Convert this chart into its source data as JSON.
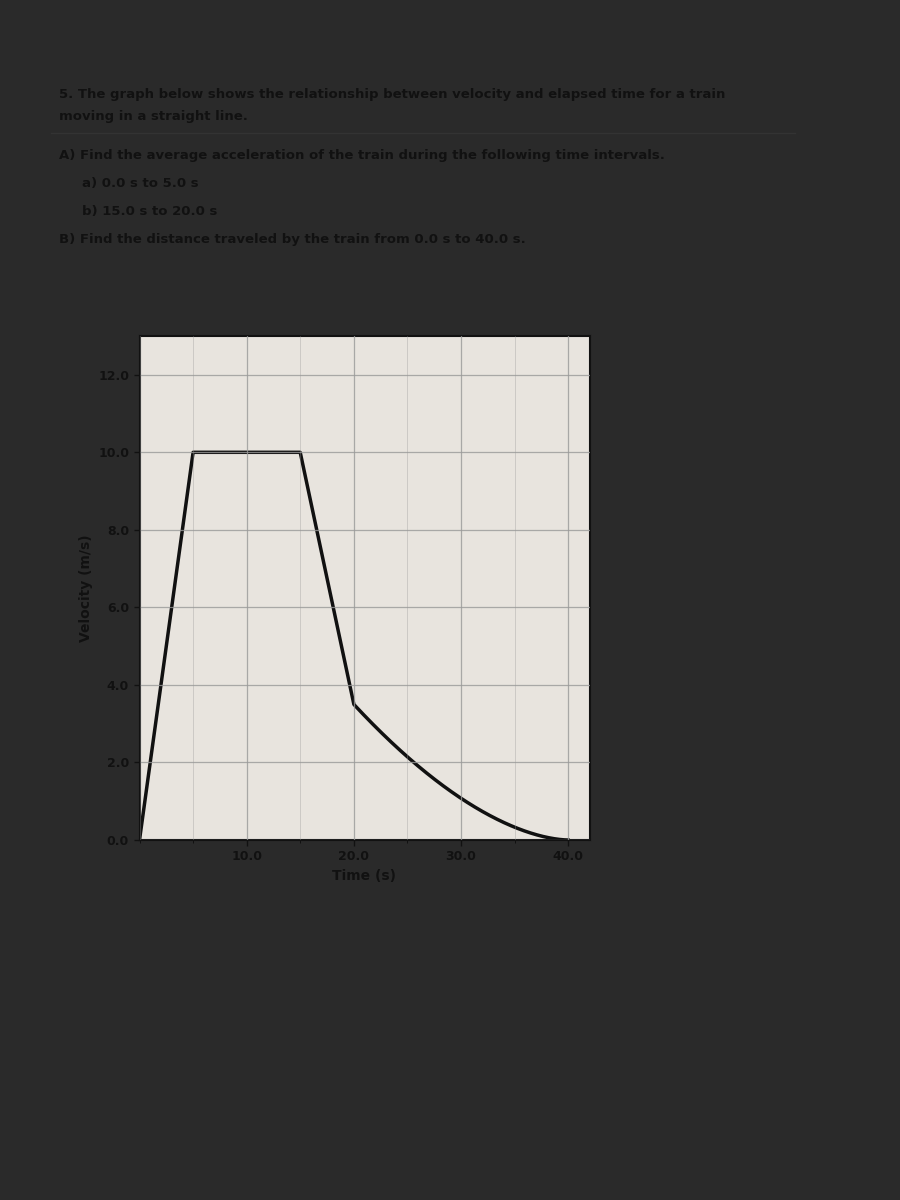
{
  "title_text": "5. The graph below shows the relationship between velocity and elapsed time for a train\nmoving in a straight line.",
  "question_A": "A) Find the average acceleration of the train during the following time intervals.",
  "question_Aa": "   a) 0.0 s to 5.0 s",
  "question_Ab": "   b) 15.0 s to 20.0 s",
  "question_B": "B) Find the distance traveled by the train from 0.0 s to 40.0 s.",
  "xlabel": "Time (s)",
  "ylabel": "Velocity (m/s)",
  "xlim": [
    0,
    42
  ],
  "ylim": [
    0,
    13
  ],
  "xticks": [
    10.0,
    20.0,
    30.0,
    40.0
  ],
  "yticks": [
    0.0,
    2.0,
    4.0,
    6.0,
    8.0,
    10.0,
    12.0
  ],
  "grid_color": "#999999",
  "line_color": "#111111",
  "line_width": 2.5,
  "bg_dark": "#2a2a2a",
  "bg_paper": "#f0ede8",
  "bg_plot": "#e8e4de",
  "fig_width": 9.0,
  "fig_height": 12.0
}
